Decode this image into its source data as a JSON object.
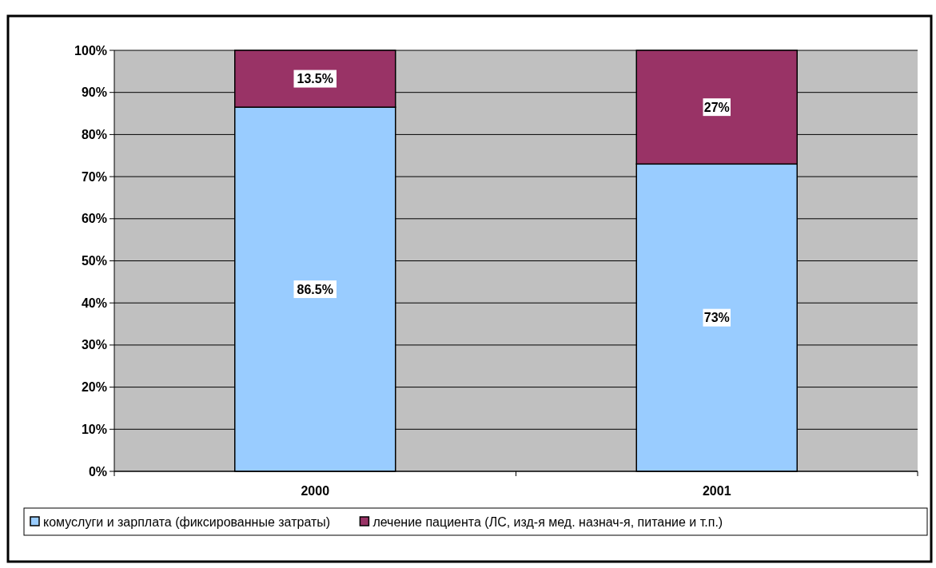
{
  "chart_data": {
    "type": "bar",
    "stacked": true,
    "categories": [
      "2000",
      "2001"
    ],
    "series": [
      {
        "name": "комуслуги и зарплата (фиксированные затраты)",
        "color": "#99ccff",
        "values": [
          86.5,
          73
        ],
        "value_labels": [
          "86.5%",
          "73%"
        ]
      },
      {
        "name": "лечение пациента (ЛС, изд-я мед. назнач-я, питание и т.п.)",
        "color": "#993366",
        "values": [
          13.5,
          27
        ],
        "value_labels": [
          "13.5%",
          "27%"
        ]
      }
    ],
    "ylim": [
      0,
      100
    ],
    "yticks": [
      {
        "value": 0,
        "label": "0%"
      },
      {
        "value": 10,
        "label": "10%"
      },
      {
        "value": 20,
        "label": "20%"
      },
      {
        "value": 30,
        "label": "30%"
      },
      {
        "value": 40,
        "label": "40%"
      },
      {
        "value": 50,
        "label": "50%"
      },
      {
        "value": 60,
        "label": "60%"
      },
      {
        "value": 70,
        "label": "70%"
      },
      {
        "value": 80,
        "label": "80%"
      },
      {
        "value": 90,
        "label": "90%"
      },
      {
        "value": 100,
        "label": "100%"
      }
    ],
    "grid": "y",
    "legend": "bottom"
  }
}
